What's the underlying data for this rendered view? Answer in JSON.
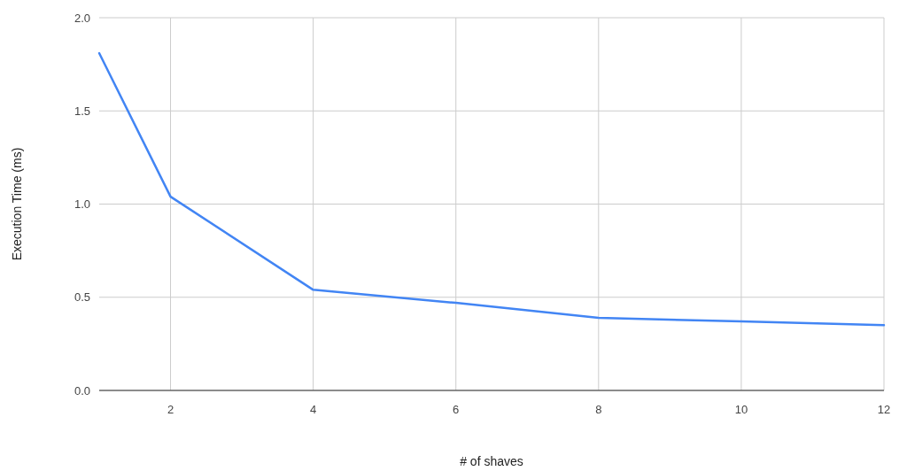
{
  "chart_data": {
    "type": "line",
    "xlabel": "# of shaves",
    "ylabel": "Execution Time (ms)",
    "x": [
      1,
      2,
      4,
      6,
      8,
      10,
      12
    ],
    "series": [
      {
        "color": "#4285f4",
        "values": [
          1.81,
          1.04,
          0.54,
          0.47,
          0.39,
          0.37,
          0.35
        ]
      }
    ],
    "xlim": [
      1,
      12
    ],
    "xticks": [
      2,
      4,
      6,
      8,
      10,
      12
    ],
    "ylim": [
      0,
      2
    ],
    "yticks": [
      {
        "value": 0,
        "label": "0.0"
      },
      {
        "value": 0.5,
        "label": "0.5"
      },
      {
        "value": 1,
        "label": "1.0"
      },
      {
        "value": 1.5,
        "label": "1.5"
      },
      {
        "value": 2,
        "label": "2.0"
      }
    ],
    "grid": true,
    "marker": "none",
    "line_style": "solid"
  }
}
